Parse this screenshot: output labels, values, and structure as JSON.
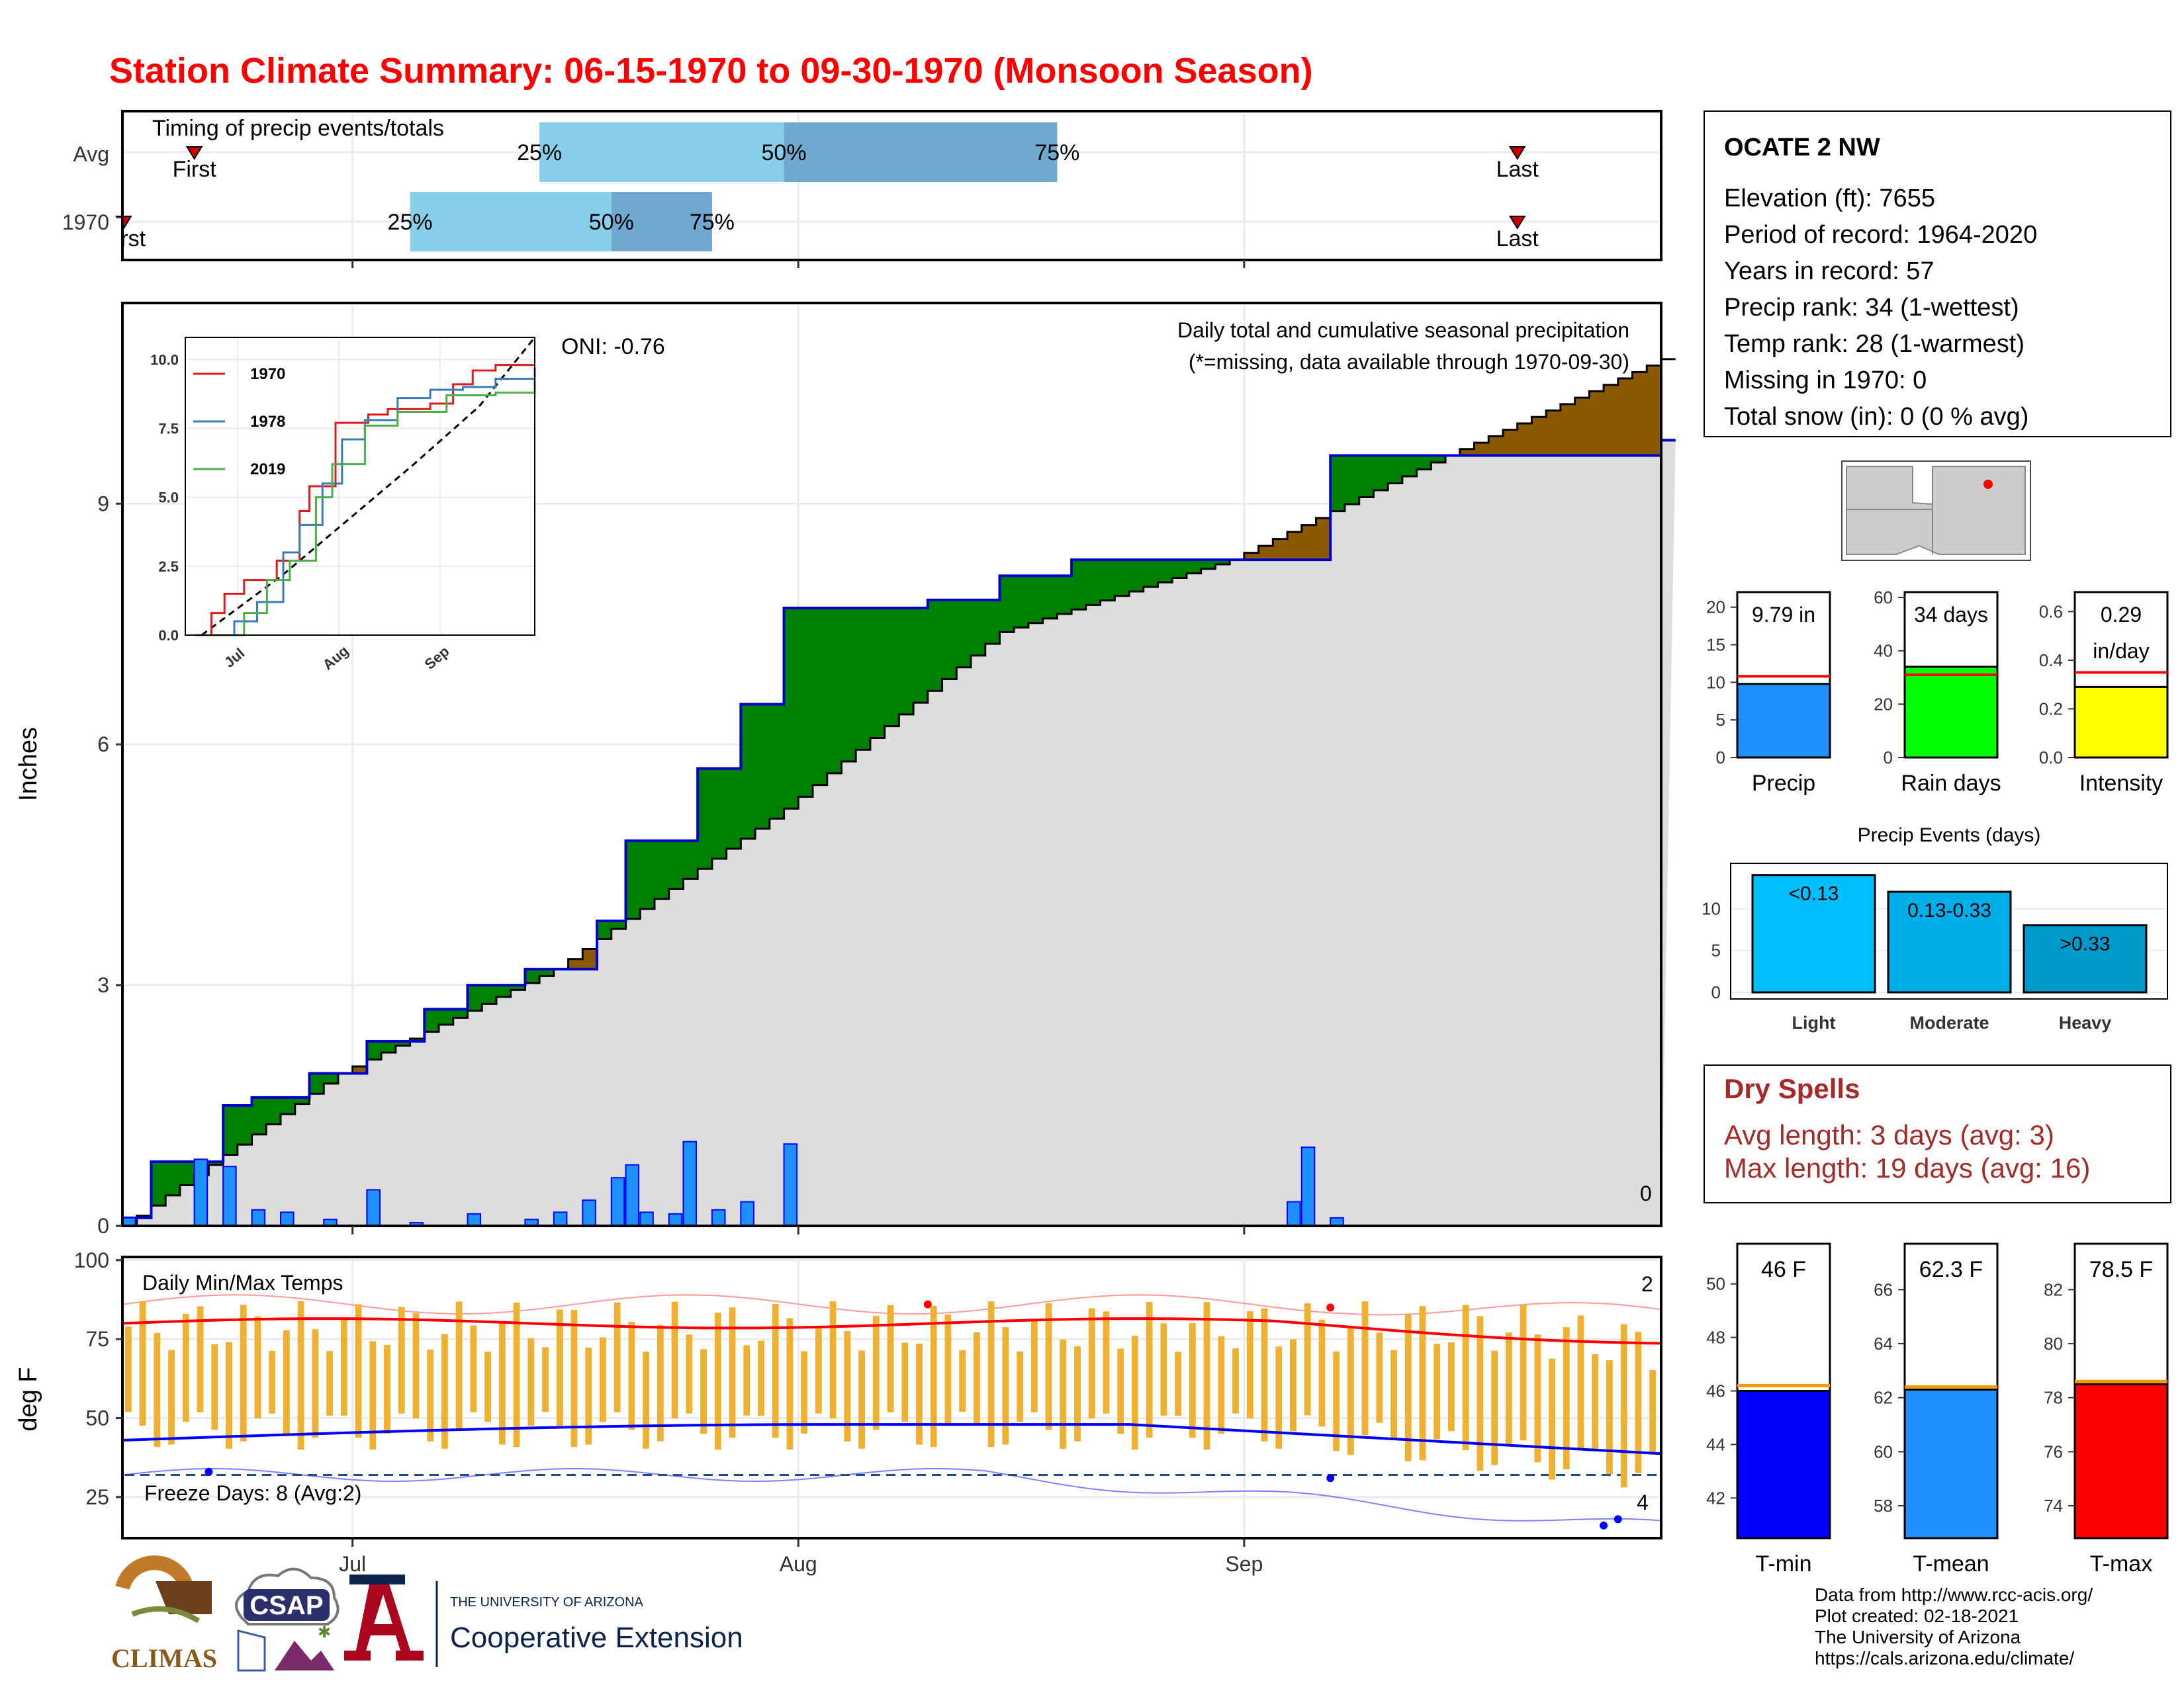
{
  "title": "Station Climate Summary: 06-15-1970 to 09-30-1970 (Monsoon Season)",
  "colors": {
    "title": "#ff0000",
    "observed_fill": "#008000",
    "deficit_fill": "#8b5a00",
    "avg_fill": "#dddddd",
    "daily_bar": "#1e90ff",
    "daily_edge": "#0000ff",
    "temp_bar": "#f0b030",
    "tmax_line": "#ff0000",
    "tmin_line": "#0000ff",
    "q1": "#87ceeb",
    "q2": "#6fa8d0",
    "dry_spells": "#a52a2a",
    "tmin_fill": "#0000ff",
    "tmean_fill": "#1e90ff",
    "tmax_fill": "#ff0000",
    "precip_fill": "#1e90ff",
    "raindays_fill": "#00ff00",
    "intensity_fill": "#ffff00",
    "light_fill": "#00bfff",
    "moderate_fill": "#00aeea",
    "heavy_fill": "#0099cc"
  },
  "timing": {
    "heading": "Timing of precip events/totals",
    "rows": [
      {
        "label": "Avg",
        "first_label": "First",
        "last_label": "Last",
        "q25_label": "25%",
        "q50_label": "50%",
        "q75_label": "75%",
        "first": "06-20",
        "q25": "07-14",
        "q50": "07-31",
        "q75": "08-19",
        "last": "09-20"
      },
      {
        "label": "1970",
        "first_label": "First",
        "last_label": "Last",
        "q25_label": "25%",
        "q50_label": "50%",
        "q75_label": "75%",
        "first": "06-15",
        "q25": "07-05",
        "q50": "07-19",
        "q75": "07-26",
        "last": "09-20"
      }
    ]
  },
  "main_chart": {
    "ylabel": "Inches",
    "yticks": [
      "0",
      "3",
      "6",
      "9"
    ],
    "xticks": [
      "Jul",
      "Aug",
      "Sep"
    ],
    "oni": "ONI: -0.76",
    "caption": "Daily total and cumulative seasonal precipitation",
    "missing_note": "(*=missing, data available through 1970-09-30)",
    "missing_count": "0"
  },
  "inset": {
    "yticks": [
      "0.0",
      "2.5",
      "5.0",
      "7.5",
      "10.0"
    ],
    "xticks": [
      "Jul",
      "Aug",
      "Sep"
    ],
    "legend": [
      {
        "name": "1970",
        "color": "#e41a1c"
      },
      {
        "name": "1978",
        "color": "#377eb8"
      },
      {
        "name": "2019",
        "color": "#4daf4a"
      }
    ]
  },
  "temp_chart": {
    "ylabel": "deg F",
    "yticks": [
      "25",
      "50",
      "75",
      "100"
    ],
    "title": "Daily Min/Max Temps",
    "record_high_count": "2",
    "record_low_count": "4",
    "freeze_label": "Freeze Days: 8 (Avg:2)"
  },
  "station": {
    "name": "OCATE 2 NW",
    "lines": [
      "Elevation (ft): 7655",
      "Period of record: 1964-2020",
      "Years in record: 57",
      "Precip rank: 34 (1-wettest)",
      "Temp rank: 28 (1-warmest)",
      "Missing in 1970: 0",
      "Total snow (in): 0 (0 % avg)"
    ]
  },
  "summary_bars": [
    {
      "label": "Precip",
      "value_label": "9.79 in",
      "value": 9.79,
      "avg": 10.8,
      "max": 22,
      "yticks": [
        "0",
        "5",
        "10",
        "15",
        "20"
      ],
      "ytick_vals": [
        0,
        5,
        10,
        15,
        20
      ]
    },
    {
      "label": "Rain days",
      "value_label": "34 days",
      "value": 34,
      "avg": 31,
      "max": 62,
      "yticks": [
        "0",
        "20",
        "40",
        "60"
      ],
      "ytick_vals": [
        0,
        20,
        40,
        60
      ]
    },
    {
      "label": "Intensity",
      "value_label": "0.29",
      "value_label2": "in/day",
      "value": 0.29,
      "avg": 0.35,
      "max": 0.68,
      "yticks": [
        "0.0",
        "0.2",
        "0.4",
        "0.6"
      ],
      "ytick_vals": [
        0,
        0.2,
        0.4,
        0.6
      ]
    }
  ],
  "precip_events": {
    "title": "Precip Events (days)",
    "yticks": [
      "0",
      "5",
      "10"
    ],
    "categories": [
      "Light",
      "Moderate",
      "Heavy"
    ],
    "bar_labels": [
      "<0.13",
      "0.13-0.33",
      ">0.33"
    ],
    "values": [
      14,
      12,
      8
    ]
  },
  "dry_spells": {
    "title": "Dry Spells",
    "avg_line": "Avg length: 3 days (avg: 3)",
    "max_line": "Max length: 19 days (avg: 16)"
  },
  "temp_bars": [
    {
      "label": "T-min",
      "value_label": "46 F",
      "value": 46,
      "avg": 46.2,
      "min": 40.5,
      "max": 51.5,
      "yticks": [
        "42",
        "44",
        "46",
        "48",
        "50"
      ],
      "ytick_vals": [
        42,
        44,
        46,
        48,
        50
      ]
    },
    {
      "label": "T-mean",
      "value_label": "62.3 F",
      "value": 62.3,
      "avg": 62.4,
      "min": 56.8,
      "max": 67.7,
      "yticks": [
        "58",
        "60",
        "62",
        "64",
        "66"
      ],
      "ytick_vals": [
        58,
        60,
        62,
        64,
        66
      ]
    },
    {
      "label": "T-max",
      "value_label": "78.5 F",
      "value": 78.5,
      "avg": 78.6,
      "min": 72.8,
      "max": 83.7,
      "yticks": [
        "74",
        "76",
        "78",
        "80",
        "82"
      ],
      "ytick_vals": [
        74,
        76,
        78,
        80,
        82
      ]
    }
  ],
  "credits": [
    "Data from http://www.rcc-acis.org/",
    "Plot created: 02-18-2021",
    "The University of Arizona",
    "https://cals.arizona.edu/climate/"
  ],
  "logos": {
    "climas": "CLIMAS",
    "csap": "CSAP",
    "ua_small": "THE UNIVERSITY OF ARIZONA",
    "ua_big": "Cooperative Extension"
  },
  "chart_data": {
    "type": "bar",
    "title": "Station Climate Summary: 06-15-1970 to 09-30-1970 (Monsoon Season)",
    "ylabel": "Inches",
    "ylim": [
      0,
      11.5
    ],
    "x_dates": [
      "06-15",
      "06-20",
      "06-22",
      "06-24",
      "06-26",
      "06-29",
      "07-02",
      "07-05",
      "07-09",
      "07-13",
      "07-15",
      "07-17",
      "07-19",
      "07-20",
      "07-21",
      "07-23",
      "07-24",
      "07-26",
      "07-28",
      "07-31",
      "09-04",
      "09-05",
      "09-07"
    ],
    "daily_precip": [
      0.1,
      0.83,
      0.74,
      0.2,
      0.17,
      0.08,
      0.45,
      0.04,
      0.15,
      0.08,
      0.17,
      0.32,
      0.6,
      0.76,
      0.17,
      0.15,
      1.05,
      0.2,
      0.3,
      1.02,
      0.3,
      0.98,
      0.1
    ],
    "cumulative_1970_end": 9.79,
    "cumulative_avg_end": 10.8,
    "series": [
      {
        "name": "1970 cumulative",
        "x": [
          "06-15",
          "06-17",
          "06-22",
          "06-24",
          "06-28",
          "07-02",
          "07-06",
          "07-09",
          "07-13",
          "07-18",
          "07-20",
          "07-25",
          "07-28",
          "07-31",
          "08-10",
          "08-15",
          "08-20",
          "09-05",
          "09-07",
          "09-30"
        ],
        "values": [
          0.1,
          0.8,
          1.5,
          1.6,
          1.9,
          2.3,
          2.7,
          3.0,
          3.2,
          3.8,
          4.8,
          5.7,
          6.5,
          7.7,
          7.8,
          8.1,
          8.3,
          8.3,
          9.6,
          9.79
        ]
      },
      {
        "name": "Average cumulative",
        "x": [
          "06-15",
          "06-30",
          "07-15",
          "07-31",
          "08-15",
          "08-31",
          "09-15",
          "09-30"
        ],
        "values": [
          0.0,
          1.9,
          3.2,
          5.2,
          7.4,
          8.3,
          9.6,
          10.8
        ]
      }
    ]
  }
}
